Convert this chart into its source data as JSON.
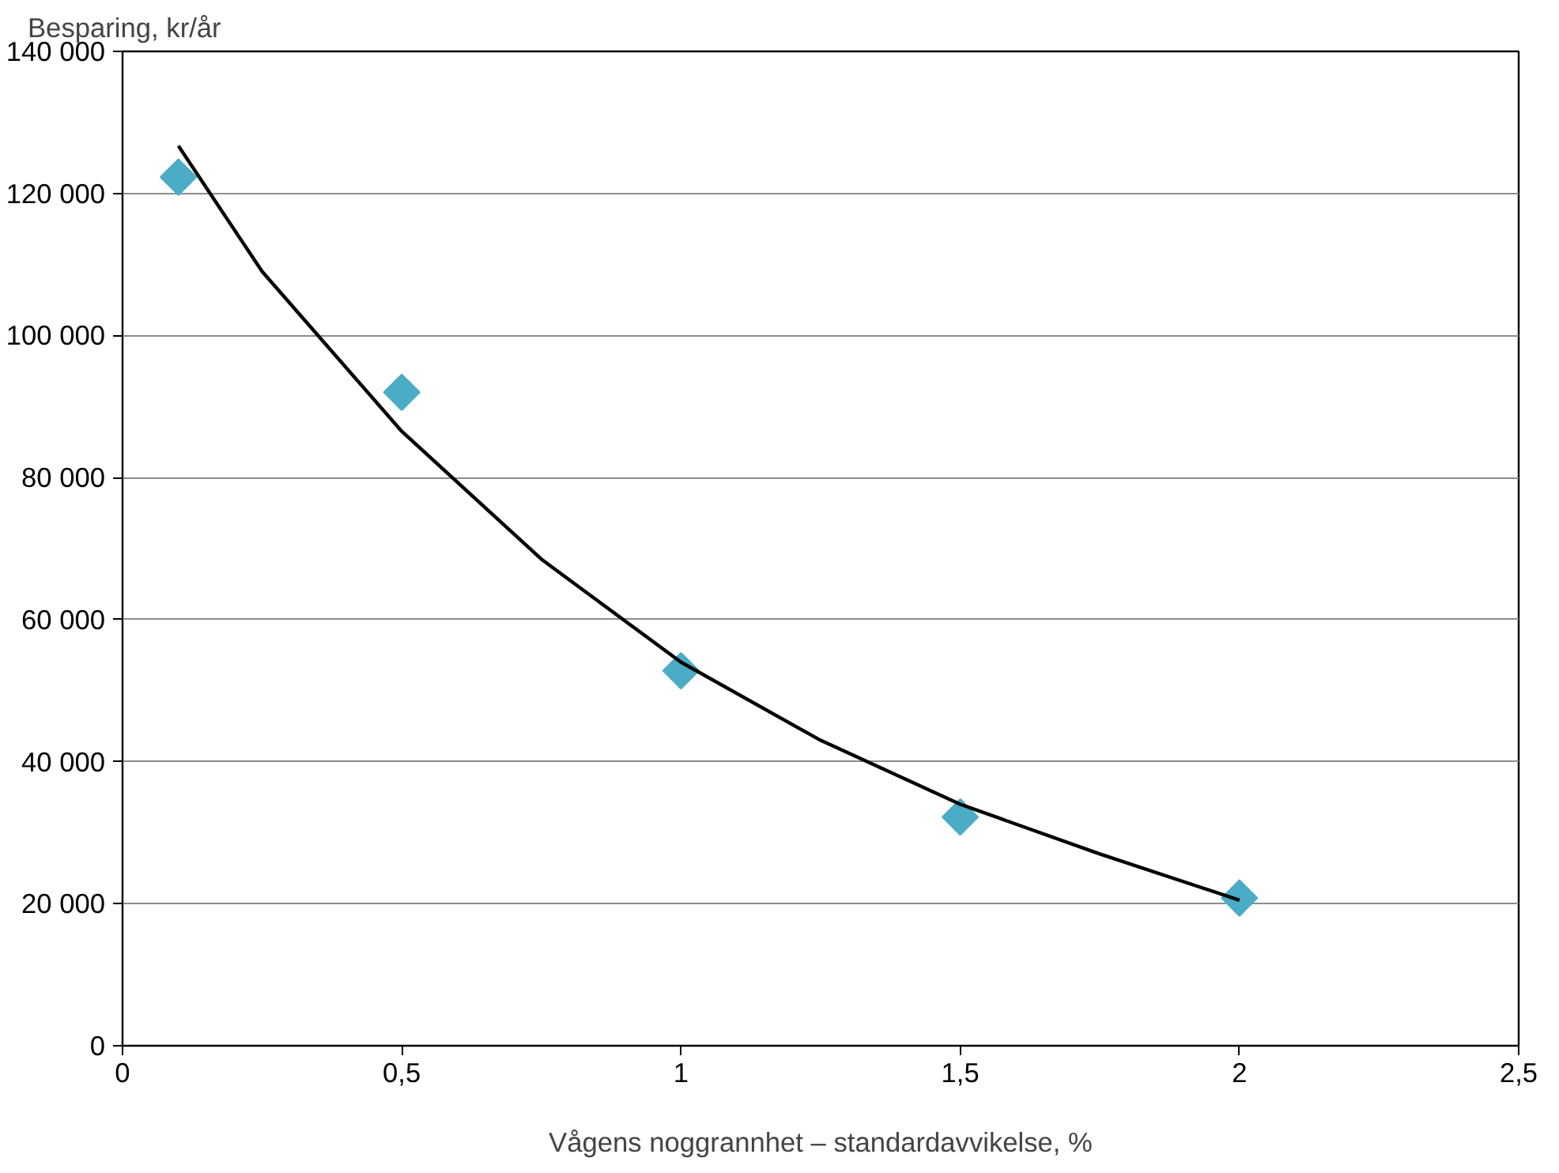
{
  "chart_data": {
    "type": "scatter",
    "xlabel": "Vågens noggrannhet – standardavvikelse, %",
    "ylabel": "Besparing, kr/år",
    "x": [
      0.1,
      0.5,
      1,
      1.5,
      2
    ],
    "series": [
      {
        "color": "#4bacc6",
        "marker": "diamond",
        "values": [
          122300,
          92000,
          52800,
          32200,
          20800
        ]
      },
      {
        "type": "line",
        "color": "#000000",
        "marker": "none",
        "x": [
          0.1,
          0.25,
          0.5,
          0.75,
          1,
          1.25,
          1.5,
          1.75,
          2
        ],
        "values": [
          126700,
          109000,
          86500,
          68500,
          54000,
          43000,
          34000,
          27000,
          20500
        ]
      }
    ],
    "xlim": [
      0,
      2.5
    ],
    "xticks": [
      0,
      {
        "value": 0.5,
        "label": "0,5"
      },
      1,
      {
        "value": 1.5,
        "label": "1,5"
      },
      2,
      {
        "value": 2.5,
        "label": "2,5"
      }
    ],
    "ylim": [
      0,
      140000
    ],
    "yticks": [
      0,
      {
        "value": 20000,
        "label": "20 000"
      },
      {
        "value": 40000,
        "label": "40 000"
      },
      {
        "value": 60000,
        "label": "60 000"
      },
      {
        "value": 80000,
        "label": "80 000"
      },
      {
        "value": 100000,
        "label": "100 000"
      },
      {
        "value": 120000,
        "label": "120 000"
      },
      {
        "value": 140000,
        "label": "140 000"
      }
    ],
    "grid": "y"
  }
}
